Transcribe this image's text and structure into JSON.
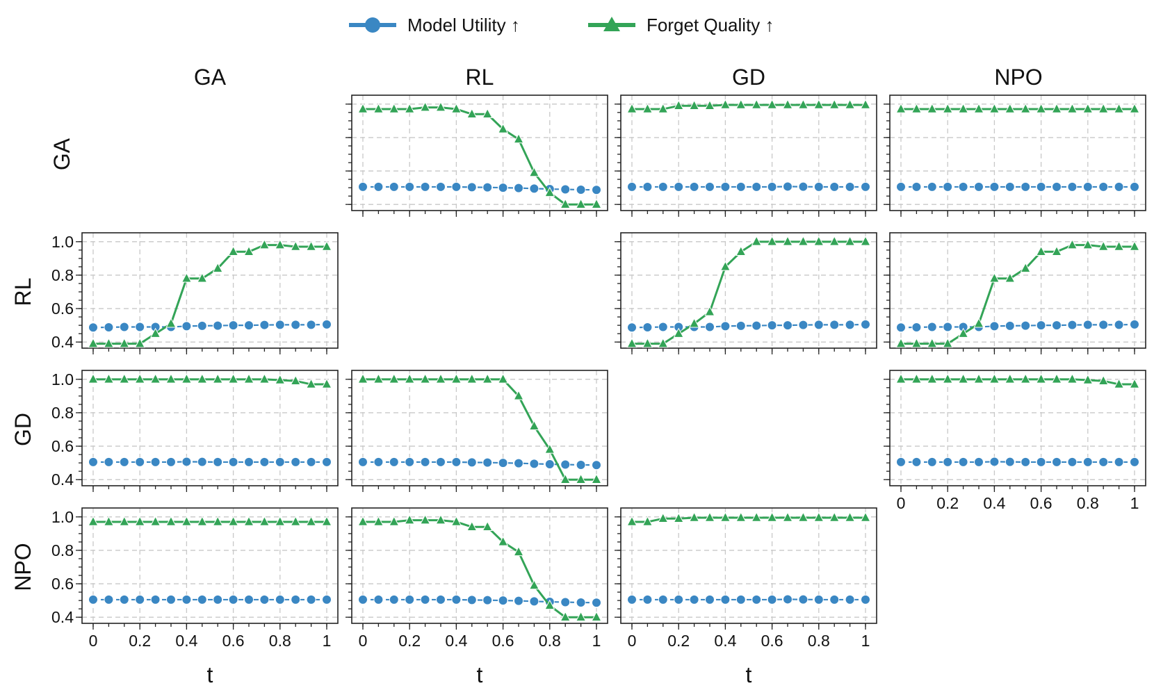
{
  "chart_data": {
    "type": "line",
    "title": "",
    "legend": {
      "placement": "top-center",
      "entries": [
        {
          "name": "Model Utility ↑",
          "color": "#3a87c3",
          "marker": "circle"
        },
        {
          "name": "Forget Quality ↑",
          "color": "#33a457",
          "marker": "triangle"
        }
      ]
    },
    "row_methods": [
      "GA",
      "RL",
      "GD",
      "NPO"
    ],
    "col_methods": [
      "GA",
      "RL",
      "GD",
      "NPO"
    ],
    "xlabel": "t",
    "xlim": [
      0,
      1
    ],
    "ylim": [
      0.38,
      1.02
    ],
    "xticks": [
      "0",
      "0.2",
      "0.4",
      "0.6",
      "0.8",
      "1"
    ],
    "yticks": [
      "0.4",
      "0.6",
      "0.8",
      "1.0"
    ],
    "x": [
      0,
      0.0667,
      0.1333,
      0.2,
      0.2667,
      0.3333,
      0.4,
      0.4667,
      0.5333,
      0.6,
      0.6667,
      0.7333,
      0.8,
      0.8667,
      0.9333,
      1.0
    ],
    "panels": [
      {
        "row": "GA",
        "col": "RL",
        "series": [
          {
            "name": "Model Utility ↑",
            "values": [
              0.505,
              0.505,
              0.505,
              0.505,
              0.505,
              0.505,
              0.505,
              0.503,
              0.502,
              0.5,
              0.498,
              0.495,
              0.492,
              0.49,
              0.488,
              0.487
            ]
          },
          {
            "name": "Forget Quality ↑",
            "values": [
              0.97,
              0.97,
              0.97,
              0.97,
              0.98,
              0.98,
              0.97,
              0.94,
              0.94,
              0.85,
              0.79,
              0.59,
              0.47,
              0.4,
              0.4,
              0.4
            ]
          }
        ]
      },
      {
        "row": "GA",
        "col": "GD",
        "series": [
          {
            "name": "Model Utility ↑",
            "values": [
              0.505,
              0.505,
              0.505,
              0.505,
              0.505,
              0.505,
              0.505,
              0.505,
              0.505,
              0.505,
              0.507,
              0.506,
              0.505,
              0.505,
              0.505,
              0.505
            ]
          },
          {
            "name": "Forget Quality ↑",
            "values": [
              0.97,
              0.97,
              0.97,
              0.99,
              0.99,
              0.99,
              0.995,
              0.995,
              0.995,
              0.995,
              0.995,
              0.995,
              0.995,
              0.995,
              0.995,
              0.995
            ]
          }
        ]
      },
      {
        "row": "GA",
        "col": "NPO",
        "series": [
          {
            "name": "Model Utility ↑",
            "values": [
              0.505,
              0.505,
              0.505,
              0.505,
              0.505,
              0.505,
              0.505,
              0.505,
              0.505,
              0.505,
              0.505,
              0.505,
              0.505,
              0.505,
              0.505,
              0.505
            ]
          },
          {
            "name": "Forget Quality ↑",
            "values": [
              0.97,
              0.97,
              0.97,
              0.97,
              0.97,
              0.97,
              0.97,
              0.97,
              0.97,
              0.97,
              0.97,
              0.97,
              0.97,
              0.97,
              0.97,
              0.97
            ]
          }
        ]
      },
      {
        "row": "RL",
        "col": "GA",
        "series": [
          {
            "name": "Model Utility ↑",
            "values": [
              0.487,
              0.488,
              0.49,
              0.49,
              0.49,
              0.49,
              0.495,
              0.497,
              0.498,
              0.5,
              0.5,
              0.502,
              0.503,
              0.503,
              0.503,
              0.505
            ]
          },
          {
            "name": "Forget Quality ↑",
            "values": [
              0.39,
              0.39,
              0.39,
              0.39,
              0.45,
              0.51,
              0.78,
              0.78,
              0.84,
              0.94,
              0.94,
              0.98,
              0.98,
              0.97,
              0.97,
              0.97
            ]
          }
        ]
      },
      {
        "row": "RL",
        "col": "GD",
        "series": [
          {
            "name": "Model Utility ↑",
            "values": [
              0.487,
              0.488,
              0.49,
              0.49,
              0.49,
              0.49,
              0.495,
              0.497,
              0.498,
              0.5,
              0.5,
              0.502,
              0.503,
              0.503,
              0.503,
              0.505
            ]
          },
          {
            "name": "Forget Quality ↑",
            "values": [
              0.39,
              0.39,
              0.39,
              0.45,
              0.51,
              0.58,
              0.85,
              0.94,
              1.0,
              1.0,
              1.0,
              1.0,
              1.0,
              1.0,
              1.0,
              1.0
            ]
          }
        ]
      },
      {
        "row": "RL",
        "col": "NPO",
        "series": [
          {
            "name": "Model Utility ↑",
            "values": [
              0.487,
              0.488,
              0.49,
              0.49,
              0.49,
              0.49,
              0.495,
              0.497,
              0.498,
              0.5,
              0.5,
              0.502,
              0.503,
              0.503,
              0.503,
              0.505
            ]
          },
          {
            "name": "Forget Quality ↑",
            "values": [
              0.39,
              0.39,
              0.39,
              0.39,
              0.45,
              0.51,
              0.78,
              0.78,
              0.84,
              0.94,
              0.94,
              0.98,
              0.98,
              0.97,
              0.97,
              0.97
            ]
          }
        ]
      },
      {
        "row": "GD",
        "col": "GA",
        "series": [
          {
            "name": "Model Utility ↑",
            "values": [
              0.505,
              0.505,
              0.505,
              0.505,
              0.505,
              0.505,
              0.507,
              0.506,
              0.505,
              0.505,
              0.505,
              0.505,
              0.505,
              0.505,
              0.505,
              0.505
            ]
          },
          {
            "name": "Forget Quality ↑",
            "values": [
              1.0,
              1.0,
              1.0,
              1.0,
              1.0,
              1.0,
              1.0,
              1.0,
              1.0,
              1.0,
              1.0,
              1.0,
              0.995,
              0.99,
              0.97,
              0.97
            ]
          }
        ]
      },
      {
        "row": "GD",
        "col": "RL",
        "series": [
          {
            "name": "Model Utility ↑",
            "values": [
              0.505,
              0.505,
              0.505,
              0.505,
              0.505,
              0.505,
              0.505,
              0.503,
              0.502,
              0.5,
              0.498,
              0.495,
              0.492,
              0.49,
              0.488,
              0.487
            ]
          },
          {
            "name": "Forget Quality ↑",
            "values": [
              1.0,
              1.0,
              1.0,
              1.0,
              1.0,
              1.0,
              1.0,
              1.0,
              1.0,
              1.0,
              0.9,
              0.72,
              0.58,
              0.4,
              0.4,
              0.4
            ]
          }
        ]
      },
      {
        "row": "GD",
        "col": "NPO",
        "series": [
          {
            "name": "Model Utility ↑",
            "values": [
              0.505,
              0.505,
              0.505,
              0.505,
              0.505,
              0.505,
              0.507,
              0.506,
              0.505,
              0.505,
              0.505,
              0.505,
              0.505,
              0.505,
              0.505,
              0.505
            ]
          },
          {
            "name": "Forget Quality ↑",
            "values": [
              1.0,
              1.0,
              1.0,
              1.0,
              1.0,
              1.0,
              1.0,
              1.0,
              1.0,
              1.0,
              1.0,
              1.0,
              0.995,
              0.99,
              0.97,
              0.97
            ]
          }
        ]
      },
      {
        "row": "NPO",
        "col": "GA",
        "series": [
          {
            "name": "Model Utility ↑",
            "values": [
              0.505,
              0.505,
              0.505,
              0.505,
              0.505,
              0.505,
              0.505,
              0.505,
              0.505,
              0.505,
              0.505,
              0.505,
              0.505,
              0.505,
              0.505,
              0.505
            ]
          },
          {
            "name": "Forget Quality ↑",
            "values": [
              0.97,
              0.97,
              0.97,
              0.97,
              0.97,
              0.97,
              0.97,
              0.97,
              0.97,
              0.97,
              0.97,
              0.97,
              0.97,
              0.97,
              0.97,
              0.97
            ]
          }
        ]
      },
      {
        "row": "NPO",
        "col": "RL",
        "series": [
          {
            "name": "Model Utility ↑",
            "values": [
              0.505,
              0.505,
              0.505,
              0.505,
              0.505,
              0.505,
              0.505,
              0.503,
              0.502,
              0.5,
              0.498,
              0.495,
              0.492,
              0.49,
              0.488,
              0.487
            ]
          },
          {
            "name": "Forget Quality ↑",
            "values": [
              0.97,
              0.97,
              0.97,
              0.98,
              0.98,
              0.98,
              0.97,
              0.94,
              0.94,
              0.85,
              0.79,
              0.59,
              0.47,
              0.4,
              0.4,
              0.4
            ]
          }
        ]
      },
      {
        "row": "NPO",
        "col": "GD",
        "series": [
          {
            "name": "Model Utility ↑",
            "values": [
              0.505,
              0.505,
              0.505,
              0.505,
              0.505,
              0.505,
              0.505,
              0.505,
              0.505,
              0.505,
              0.507,
              0.506,
              0.505,
              0.505,
              0.505,
              0.505
            ]
          },
          {
            "name": "Forget Quality ↑",
            "values": [
              0.97,
              0.97,
              0.99,
              0.99,
              0.995,
              0.995,
              0.995,
              0.995,
              0.995,
              0.995,
              0.995,
              0.995,
              0.995,
              0.995,
              0.995,
              0.995
            ]
          }
        ]
      }
    ]
  }
}
